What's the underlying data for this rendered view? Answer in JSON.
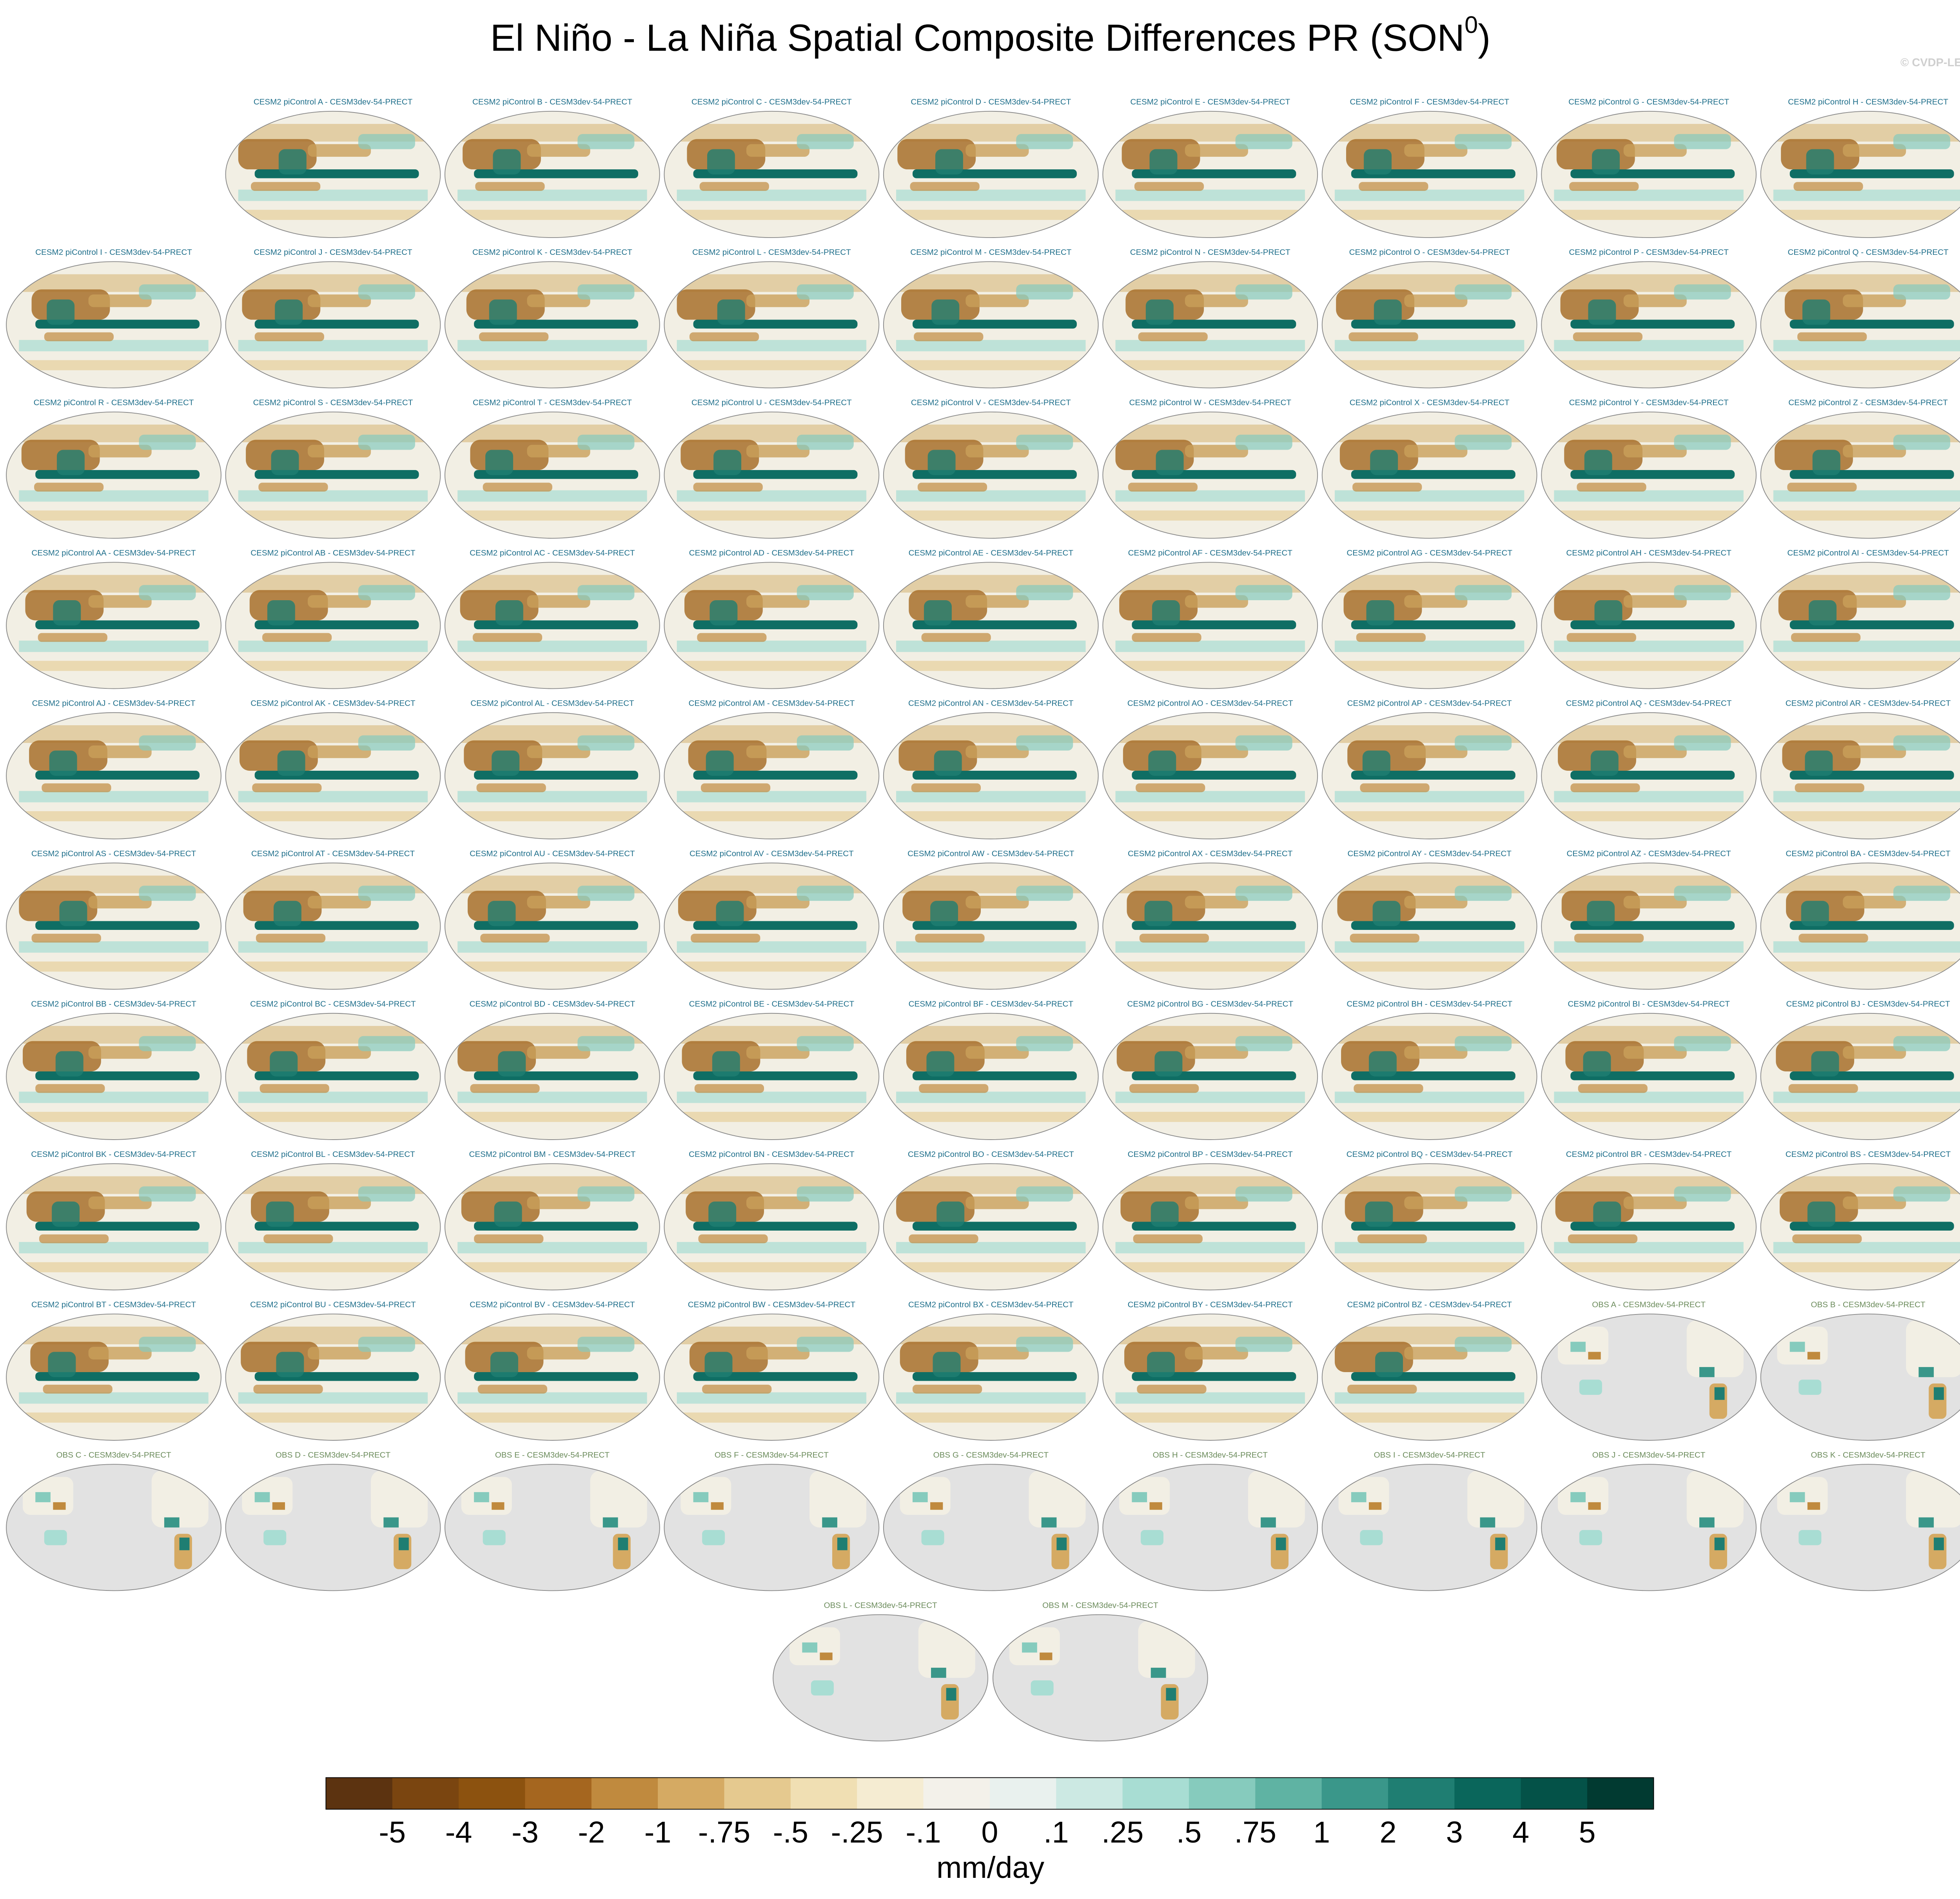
{
  "title": "El Niño - La Niña Spatial Composite Differences PR (SON",
  "title_superscript": "0",
  "title_close": ")",
  "credit": "© CVDP-LE",
  "panels": [
    "CESM2 piControl A - CESM3dev-54-PRECT",
    "CESM2 piControl B - CESM3dev-54-PRECT",
    "CESM2 piControl C - CESM3dev-54-PRECT",
    "CESM2 piControl D - CESM3dev-54-PRECT",
    "CESM2 piControl E - CESM3dev-54-PRECT",
    "CESM2 piControl F - CESM3dev-54-PRECT",
    "CESM2 piControl G - CESM3dev-54-PRECT",
    "CESM2 piControl H - CESM3dev-54-PRECT",
    "CESM2 piControl I - CESM3dev-54-PRECT",
    "CESM2 piControl J - CESM3dev-54-PRECT",
    "CESM2 piControl K - CESM3dev-54-PRECT",
    "CESM2 piControl L - CESM3dev-54-PRECT",
    "CESM2 piControl M - CESM3dev-54-PRECT",
    "CESM2 piControl N - CESM3dev-54-PRECT",
    "CESM2 piControl O - CESM3dev-54-PRECT",
    "CESM2 piControl P - CESM3dev-54-PRECT",
    "CESM2 piControl Q - CESM3dev-54-PRECT",
    "CESM2 piControl R - CESM3dev-54-PRECT",
    "CESM2 piControl S - CESM3dev-54-PRECT",
    "CESM2 piControl T - CESM3dev-54-PRECT",
    "CESM2 piControl U - CESM3dev-54-PRECT",
    "CESM2 piControl V - CESM3dev-54-PRECT",
    "CESM2 piControl W - CESM3dev-54-PRECT",
    "CESM2 piControl X - CESM3dev-54-PRECT",
    "CESM2 piControl Y - CESM3dev-54-PRECT",
    "CESM2 piControl Z - CESM3dev-54-PRECT",
    "CESM2 piControl AA - CESM3dev-54-PRECT",
    "CESM2 piControl AB - CESM3dev-54-PRECT",
    "CESM2 piControl AC - CESM3dev-54-PRECT",
    "CESM2 piControl AD - CESM3dev-54-PRECT",
    "CESM2 piControl AE - CESM3dev-54-PRECT",
    "CESM2 piControl AF - CESM3dev-54-PRECT",
    "CESM2 piControl AG - CESM3dev-54-PRECT",
    "CESM2 piControl AH - CESM3dev-54-PRECT",
    "CESM2 piControl AI - CESM3dev-54-PRECT",
    "CESM2 piControl AJ - CESM3dev-54-PRECT",
    "CESM2 piControl AK - CESM3dev-54-PRECT",
    "CESM2 piControl AL - CESM3dev-54-PRECT",
    "CESM2 piControl AM - CESM3dev-54-PRECT",
    "CESM2 piControl AN - CESM3dev-54-PRECT",
    "CESM2 piControl AO - CESM3dev-54-PRECT",
    "CESM2 piControl AP - CESM3dev-54-PRECT",
    "CESM2 piControl AQ - CESM3dev-54-PRECT",
    "CESM2 piControl AR - CESM3dev-54-PRECT",
    "CESM2 piControl AS - CESM3dev-54-PRECT",
    "CESM2 piControl AT - CESM3dev-54-PRECT",
    "CESM2 piControl AU - CESM3dev-54-PRECT",
    "CESM2 piControl AV - CESM3dev-54-PRECT",
    "CESM2 piControl AW - CESM3dev-54-PRECT",
    "CESM2 piControl AX - CESM3dev-54-PRECT",
    "CESM2 piControl AY - CESM3dev-54-PRECT",
    "CESM2 piControl AZ - CESM3dev-54-PRECT",
    "CESM2 piControl BA - CESM3dev-54-PRECT",
    "CESM2 piControl BB - CESM3dev-54-PRECT",
    "CESM2 piControl BC - CESM3dev-54-PRECT",
    "CESM2 piControl BD - CESM3dev-54-PRECT",
    "CESM2 piControl BE - CESM3dev-54-PRECT",
    "CESM2 piControl BF - CESM3dev-54-PRECT",
    "CESM2 piControl BG - CESM3dev-54-PRECT",
    "CESM2 piControl BH - CESM3dev-54-PRECT",
    "CESM2 piControl BI - CESM3dev-54-PRECT",
    "CESM2 piControl BJ - CESM3dev-54-PRECT",
    "CESM2 piControl BK - CESM3dev-54-PRECT",
    "CESM2 piControl BL - CESM3dev-54-PRECT",
    "CESM2 piControl BM - CESM3dev-54-PRECT",
    "CESM2 piControl BN - CESM3dev-54-PRECT",
    "CESM2 piControl BO - CESM3dev-54-PRECT",
    "CESM2 piControl BP - CESM3dev-54-PRECT",
    "CESM2 piControl BQ - CESM3dev-54-PRECT",
    "CESM2 piControl BR - CESM3dev-54-PRECT",
    "CESM2 piControl BS - CESM3dev-54-PRECT",
    "CESM2 piControl BT - CESM3dev-54-PRECT",
    "CESM2 piControl BU - CESM3dev-54-PRECT",
    "CESM2 piControl BV - CESM3dev-54-PRECT",
    "CESM2 piControl BW - CESM3dev-54-PRECT",
    "CESM2 piControl BX - CESM3dev-54-PRECT",
    "CESM2 piControl BY - CESM3dev-54-PRECT",
    "CESM2 piControl BZ - CESM3dev-54-PRECT",
    "OBS A - CESM3dev-54-PRECT",
    "OBS B - CESM3dev-54-PRECT",
    "OBS C - CESM3dev-54-PRECT",
    "OBS D - CESM3dev-54-PRECT",
    "OBS E - CESM3dev-54-PRECT",
    "OBS F - CESM3dev-54-PRECT",
    "OBS G - CESM3dev-54-PRECT",
    "OBS H - CESM3dev-54-PRECT",
    "OBS I - CESM3dev-54-PRECT",
    "OBS J - CESM3dev-54-PRECT",
    "OBS K - CESM3dev-54-PRECT",
    "OBS L - CESM3dev-54-PRECT",
    "OBS M - CESM3dev-54-PRECT"
  ],
  "colorbar": {
    "levels": [
      -5,
      -4,
      -3,
      -2,
      -1,
      {
        "value": -0.75,
        "label": "-.75"
      },
      {
        "value": -0.5,
        "label": "-.5"
      },
      {
        "value": -0.25,
        "label": "-.25"
      },
      {
        "value": -0.1,
        "label": "-.1"
      },
      0,
      {
        "value": 0.1,
        "label": ".1"
      },
      {
        "value": 0.25,
        "label": ".25"
      },
      {
        "value": 0.5,
        "label": ".5"
      },
      {
        "value": 0.75,
        "label": ".75"
      },
      1,
      2,
      3,
      4,
      5
    ],
    "colors": [
      "#5c3310",
      "#7a4510",
      "#8c520f",
      "#a5661f",
      "#c08a3e",
      "#d5aa63",
      "#e5c98f",
      "#f0dfb3",
      "#f5ecd2",
      "#f3f1ea",
      "#e9f1ee",
      "#cce9e3",
      "#a8ddd3",
      "#86cbbd",
      "#5fb3a3",
      "#3a978a",
      "#1f7e72",
      "#0a665b",
      "#045248",
      "#013a31"
    ],
    "units": "mm/day"
  }
}
